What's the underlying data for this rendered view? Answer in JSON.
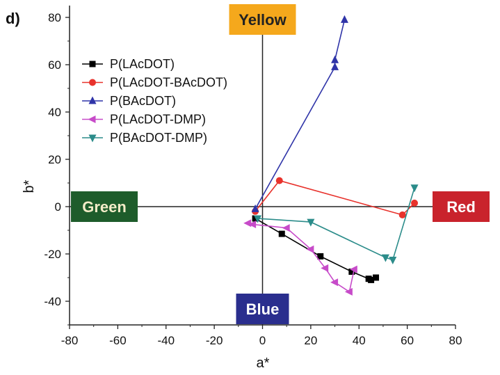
{
  "panel_label": "d)",
  "chart_data": {
    "type": "scatter",
    "xlabel": "a*",
    "ylabel": "b*",
    "xlim": [
      -80,
      80
    ],
    "ylim": [
      -50,
      85
    ],
    "xticks": [
      -80,
      -60,
      -40,
      -20,
      0,
      20,
      40,
      60,
      80
    ],
    "yticks": [
      -40,
      -20,
      0,
      20,
      40,
      60,
      80
    ],
    "legend_position": "top-left",
    "color_regions": [
      {
        "label": "Yellow",
        "position": "top",
        "color": "#f5a81c",
        "text_color": "#222222"
      },
      {
        "label": "Green",
        "position": "left",
        "color": "#1e5c2b",
        "text_color": "#f3ecc8"
      },
      {
        "label": "Red",
        "position": "right",
        "color": "#c9232c",
        "text_color": "#ffffff"
      },
      {
        "label": "Blue",
        "position": "bottom",
        "color": "#2a2e8e",
        "text_color": "#ffffff"
      }
    ],
    "series": [
      {
        "name": "P(LAcDOT)",
        "color": "#000000",
        "marker": "square",
        "points": [
          [
            -3,
            -5
          ],
          [
            8,
            -11.5
          ],
          [
            24,
            -21
          ],
          [
            37,
            -27.5
          ],
          [
            44,
            -30.5
          ],
          [
            45,
            -31
          ],
          [
            47,
            -30
          ]
        ]
      },
      {
        "name": "P(LAcDOT-BAcDOT)",
        "color": "#e8322c",
        "marker": "circle",
        "points": [
          [
            -3,
            -2
          ],
          [
            7,
            11
          ],
          [
            58,
            -3.5
          ],
          [
            63,
            1.5
          ]
        ]
      },
      {
        "name": "P(BAcDOT)",
        "color": "#2f34a8",
        "marker": "triangle-up",
        "points": [
          [
            -3,
            -1
          ],
          [
            30,
            59
          ],
          [
            30,
            62
          ],
          [
            34,
            79
          ]
        ]
      },
      {
        "name": "P(LAcDOT-DMP)",
        "color": "#c74bc9",
        "marker": "triangle-left",
        "points": [
          [
            -6,
            -7
          ],
          [
            -4,
            -7.5
          ],
          [
            10,
            -9
          ],
          [
            20,
            -18
          ],
          [
            26,
            -26
          ],
          [
            30,
            -32
          ],
          [
            36,
            -36
          ],
          [
            38,
            -26.5
          ]
        ]
      },
      {
        "name": "P(BAcDOT-DMP)",
        "color": "#2b8c8a",
        "marker": "triangle-down",
        "points": [
          [
            -2,
            -5
          ],
          [
            20,
            -6.5
          ],
          [
            51,
            -21.5
          ],
          [
            54,
            -22.5
          ],
          [
            63,
            8
          ]
        ]
      }
    ]
  }
}
